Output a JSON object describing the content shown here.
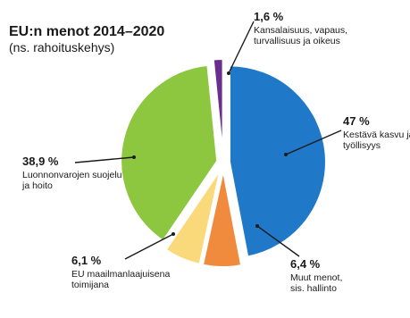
{
  "chart_data": {
    "type": "pie",
    "title": "EU:n menot 2014–2020",
    "subtitle": "(ns. rahoituskehys)",
    "slices": [
      {
        "value": 47,
        "value_label": "47 %",
        "label_lines": [
          "Kestävä kasvu ja",
          "työllisyys"
        ],
        "color": "#1f78c8"
      },
      {
        "value": 6.4,
        "value_label": "6,4 %",
        "label_lines": [
          "Muut menot,",
          "sis. hallinto"
        ],
        "color": "#f08a3c"
      },
      {
        "value": 6.1,
        "value_label": "6,1 %",
        "label_lines": [
          "EU maailmanlaajuisena",
          "toimijana"
        ],
        "color": "#fad97a"
      },
      {
        "value": 38.9,
        "value_label": "38,9 %",
        "label_lines": [
          "Luonnonvarojen suojelu",
          "ja hoito"
        ],
        "color": "#8dc63f"
      },
      {
        "value": 1.6,
        "value_label": "1,6 %",
        "label_lines": [
          "Kansalaisuus, vapaus,",
          "turvallisuus ja oikeus"
        ],
        "color": "#6b2d8e"
      }
    ]
  }
}
